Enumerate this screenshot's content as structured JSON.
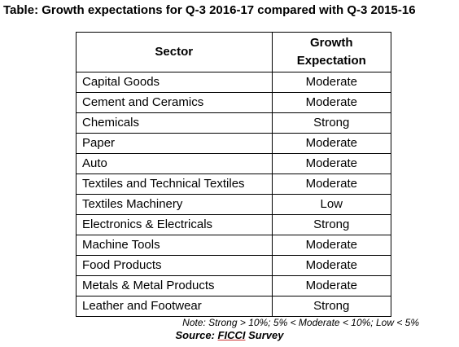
{
  "title": "Table: Growth expectations for Q-3 2016-17 compared with Q-3 2015-16",
  "table": {
    "headers": {
      "sector": "Sector",
      "growth_line1": "Growth",
      "growth_line2": "Expectation"
    },
    "rows": [
      {
        "sector": "Capital Goods",
        "growth": "Moderate"
      },
      {
        "sector": "Cement and Ceramics",
        "growth": "Moderate"
      },
      {
        "sector": "Chemicals",
        "growth": "Strong"
      },
      {
        "sector": "Paper",
        "growth": "Moderate"
      },
      {
        "sector": "Auto",
        "growth": "Moderate"
      },
      {
        "sector": "Textiles and Technical Textiles",
        "growth": "Moderate"
      },
      {
        "sector": "Textiles Machinery",
        "growth": "Low"
      },
      {
        "sector": "Electronics & Electricals",
        "growth": "Strong"
      },
      {
        "sector": "Machine Tools",
        "growth": "Moderate"
      },
      {
        "sector": "Food Products",
        "growth": "Moderate"
      },
      {
        "sector": "Metals & Metal Products",
        "growth": "Moderate"
      },
      {
        "sector": "Leather and Footwear",
        "growth": "Strong"
      }
    ]
  },
  "note": "Note: Strong > 10%; 5% < Moderate < 10%; Low < 5%",
  "source": {
    "prefix": "Source: ",
    "highlight": "FICCI",
    "suffix": " Survey"
  }
}
